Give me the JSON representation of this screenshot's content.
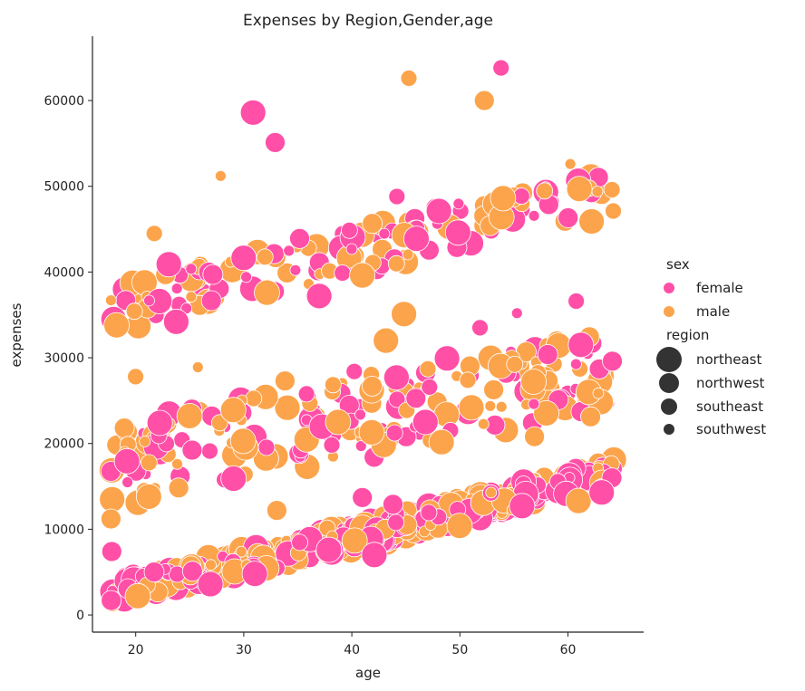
{
  "chart_data": {
    "type": "scatter",
    "title": "Expenses by Region,Gender,age",
    "xlabel": "age",
    "ylabel": "expenses",
    "xlim": [
      16,
      67
    ],
    "ylim": [
      -2000,
      67500
    ],
    "xticks": [
      20,
      30,
      40,
      50,
      60
    ],
    "yticks": [
      0,
      10000,
      20000,
      30000,
      40000,
      50000,
      60000
    ],
    "grid": false,
    "legend_placement": "right",
    "hue": {
      "title": "sex",
      "entries": [
        {
          "name": "female",
          "color": "#ff4fa7"
        },
        {
          "name": "male",
          "color": "#fca44c"
        }
      ]
    },
    "size": {
      "title": "region",
      "entries": [
        {
          "name": "northeast",
          "radius": 14
        },
        {
          "name": "northwest",
          "radius": 11
        },
        {
          "name": "southeast",
          "radius": 9
        },
        {
          "name": "southwest",
          "radius": 6
        }
      ],
      "legend_marker_color": "#333333"
    },
    "sample_points": [
      {
        "x": 31,
        "y": 58600,
        "sex": "female",
        "region": "northeast"
      },
      {
        "x": 33,
        "y": 55100,
        "sex": "female",
        "region": "northwest"
      },
      {
        "x": 45,
        "y": 62600,
        "sex": "male",
        "region": "southeast"
      },
      {
        "x": 54,
        "y": 63800,
        "sex": "female",
        "region": "southeast"
      },
      {
        "x": 52,
        "y": 60000,
        "sex": "male",
        "region": "northwest"
      },
      {
        "x": 28,
        "y": 51200,
        "sex": "male",
        "region": "southwest"
      },
      {
        "x": 60,
        "y": 52600,
        "sex": "male",
        "region": "southwest"
      },
      {
        "x": 44,
        "y": 48800,
        "sex": "female",
        "region": "southeast"
      },
      {
        "x": 23,
        "y": 40900,
        "sex": "female",
        "region": "northeast"
      },
      {
        "x": 22,
        "y": 44500,
        "sex": "male",
        "region": "southeast"
      },
      {
        "x": 32,
        "y": 37600,
        "sex": "male",
        "region": "northeast"
      },
      {
        "x": 35,
        "y": 43900,
        "sex": "female",
        "region": "northwest"
      },
      {
        "x": 43,
        "y": 32000,
        "sex": "male",
        "region": "northeast"
      },
      {
        "x": 45,
        "y": 35100,
        "sex": "male",
        "region": "northeast"
      },
      {
        "x": 52,
        "y": 33500,
        "sex": "female",
        "region": "southeast"
      },
      {
        "x": 18,
        "y": 33800,
        "sex": "male",
        "region": "northeast"
      },
      {
        "x": 34,
        "y": 27300,
        "sex": "male",
        "region": "northwest"
      },
      {
        "x": 40,
        "y": 28400,
        "sex": "female",
        "region": "southeast"
      },
      {
        "x": 44,
        "y": 12900,
        "sex": "female",
        "region": "northwest"
      },
      {
        "x": 41,
        "y": 13700,
        "sex": "female",
        "region": "northwest"
      },
      {
        "x": 33,
        "y": 12200,
        "sex": "male",
        "region": "northwest"
      },
      {
        "x": 18,
        "y": 11200,
        "sex": "male",
        "region": "northwest"
      },
      {
        "x": 18,
        "y": 7400,
        "sex": "female",
        "region": "northwest"
      },
      {
        "x": 18,
        "y": 1700,
        "sex": "female",
        "region": "northwest"
      },
      {
        "x": 64,
        "y": 16000,
        "sex": "female",
        "region": "northwest"
      },
      {
        "x": 64,
        "y": 29600,
        "sex": "female",
        "region": "northwest"
      },
      {
        "x": 57,
        "y": 20800,
        "sex": "male",
        "region": "northwest"
      },
      {
        "x": 61,
        "y": 36600,
        "sex": "female",
        "region": "southeast"
      },
      {
        "x": 62,
        "y": 45900,
        "sex": "male",
        "region": "northeast"
      },
      {
        "x": 64,
        "y": 49600,
        "sex": "male",
        "region": "southeast"
      },
      {
        "x": 55,
        "y": 35200,
        "sex": "female",
        "region": "southwest"
      },
      {
        "x": 47,
        "y": 28700,
        "sex": "male",
        "region": "southeast"
      },
      {
        "x": 26,
        "y": 28900,
        "sex": "male",
        "region": "southwest"
      },
      {
        "x": 20,
        "y": 27800,
        "sex": "male",
        "region": "southeast"
      },
      {
        "x": 39,
        "y": 22500,
        "sex": "male",
        "region": "northeast"
      },
      {
        "x": 29,
        "y": 15900,
        "sex": "female",
        "region": "northeast"
      },
      {
        "x": 50,
        "y": 44600,
        "sex": "female",
        "region": "northeast"
      },
      {
        "x": 54,
        "y": 48600,
        "sex": "male",
        "region": "northeast"
      },
      {
        "x": 41,
        "y": 39600,
        "sex": "male",
        "region": "northeast"
      },
      {
        "x": 37,
        "y": 37200,
        "sex": "female",
        "region": "northeast"
      },
      {
        "x": 24,
        "y": 34200,
        "sex": "female",
        "region": "northeast"
      },
      {
        "x": 51,
        "y": 24200,
        "sex": "male",
        "region": "northeast"
      },
      {
        "x": 57,
        "y": 27200,
        "sex": "male",
        "region": "northeast"
      },
      {
        "x": 61,
        "y": 31500,
        "sex": "female",
        "region": "northeast"
      },
      {
        "x": 25,
        "y": 23200,
        "sex": "male",
        "region": "northeast"
      },
      {
        "x": 22,
        "y": 22400,
        "sex": "female",
        "region": "northeast"
      },
      {
        "x": 30,
        "y": 20300,
        "sex": "male",
        "region": "northeast"
      },
      {
        "x": 42,
        "y": 21300,
        "sex": "male",
        "region": "northeast"
      },
      {
        "x": 47,
        "y": 22500,
        "sex": "female",
        "region": "northeast"
      },
      {
        "x": 38,
        "y": 7600,
        "sex": "female",
        "region": "northeast"
      },
      {
        "x": 42,
        "y": 7000,
        "sex": "female",
        "region": "northeast"
      },
      {
        "x": 50,
        "y": 10400,
        "sex": "male",
        "region": "northeast"
      },
      {
        "x": 56,
        "y": 12700,
        "sex": "female",
        "region": "northeast"
      },
      {
        "x": 61,
        "y": 13300,
        "sex": "male",
        "region": "northeast"
      },
      {
        "x": 63,
        "y": 14300,
        "sex": "female",
        "region": "northeast"
      },
      {
        "x": 27,
        "y": 3600,
        "sex": "female",
        "region": "northeast"
      },
      {
        "x": 31,
        "y": 4800,
        "sex": "female",
        "region": "northeast"
      },
      {
        "x": 20,
        "y": 2200,
        "sex": "male",
        "region": "northeast"
      }
    ]
  }
}
